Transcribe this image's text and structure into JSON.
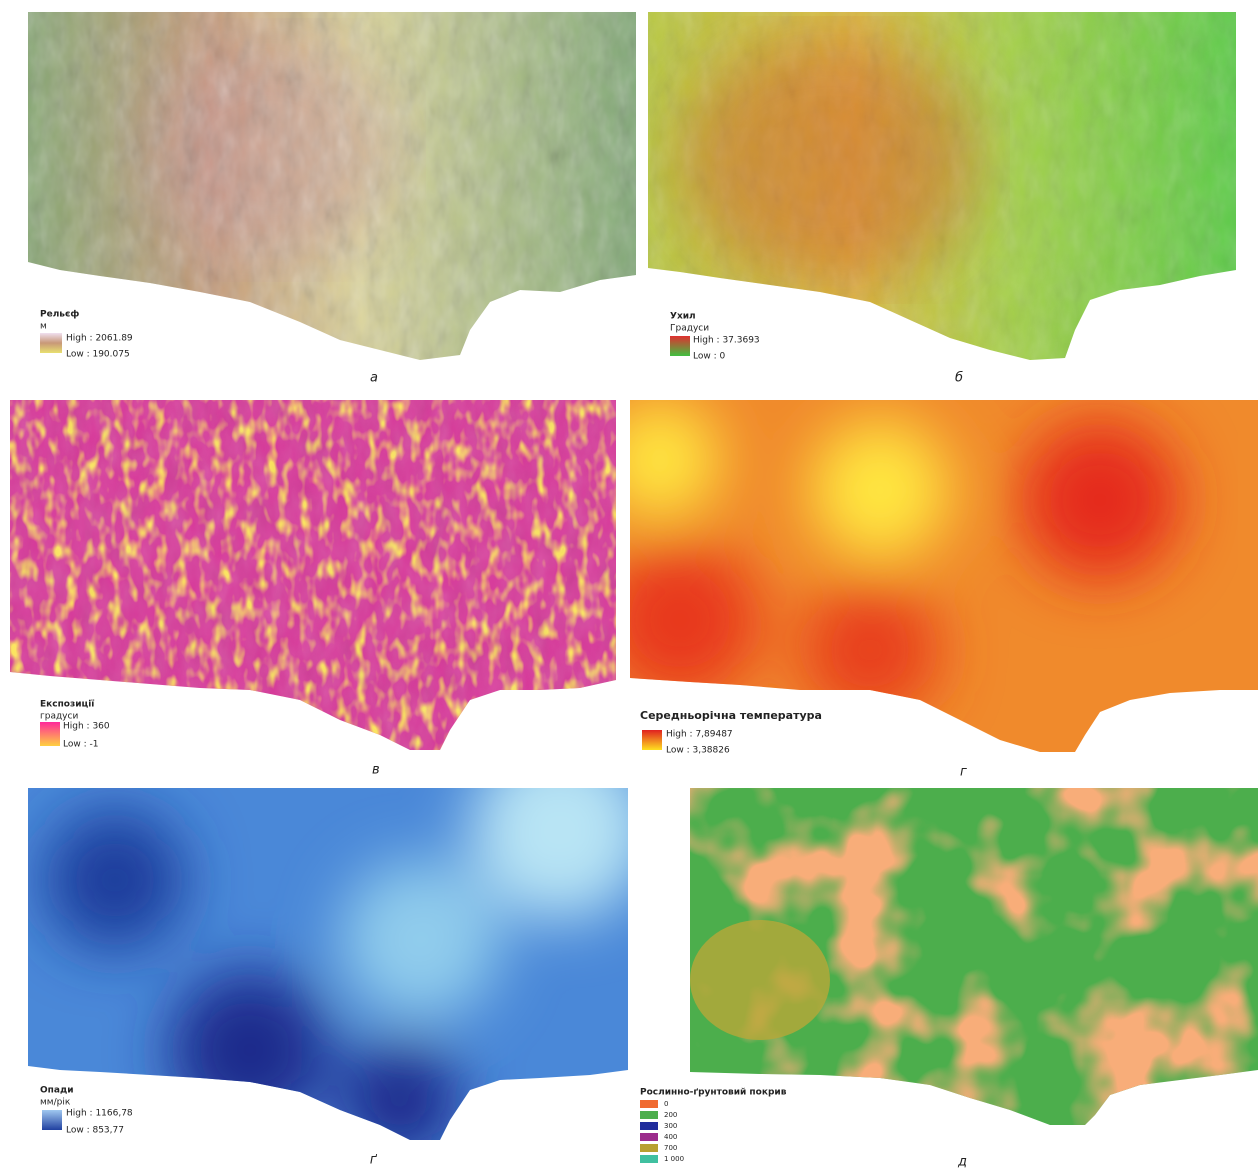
{
  "panels": [
    {
      "legend_title": "Рельєф",
      "unit": "м",
      "high": "High : 2061.89",
      "low": "Low : 190.075",
      "caption": "а"
    },
    {
      "legend_title": "Ухил",
      "unit": "Градуси",
      "high": "High : 37.3693",
      "low": "Low : 0",
      "caption": "б"
    },
    {
      "legend_title": "Експозиції",
      "unit": "градуси",
      "high": "High : 360",
      "low": "Low : -1",
      "caption": "в"
    },
    {
      "legend_title": "Середньорічна температура",
      "high": "High : 7,89487",
      "low": "Low : 3,38826",
      "caption": "г"
    },
    {
      "legend_title": "Опади",
      "unit": "мм/рік",
      "high": "High : 1166,78",
      "low": "Low : 853,77",
      "caption": "ґ"
    },
    {
      "legend_title": "Рослинно-ґрунтовий покрив",
      "items": [
        "0",
        "200",
        "300",
        "400",
        "700",
        "1 000"
      ],
      "caption": "д"
    }
  ]
}
